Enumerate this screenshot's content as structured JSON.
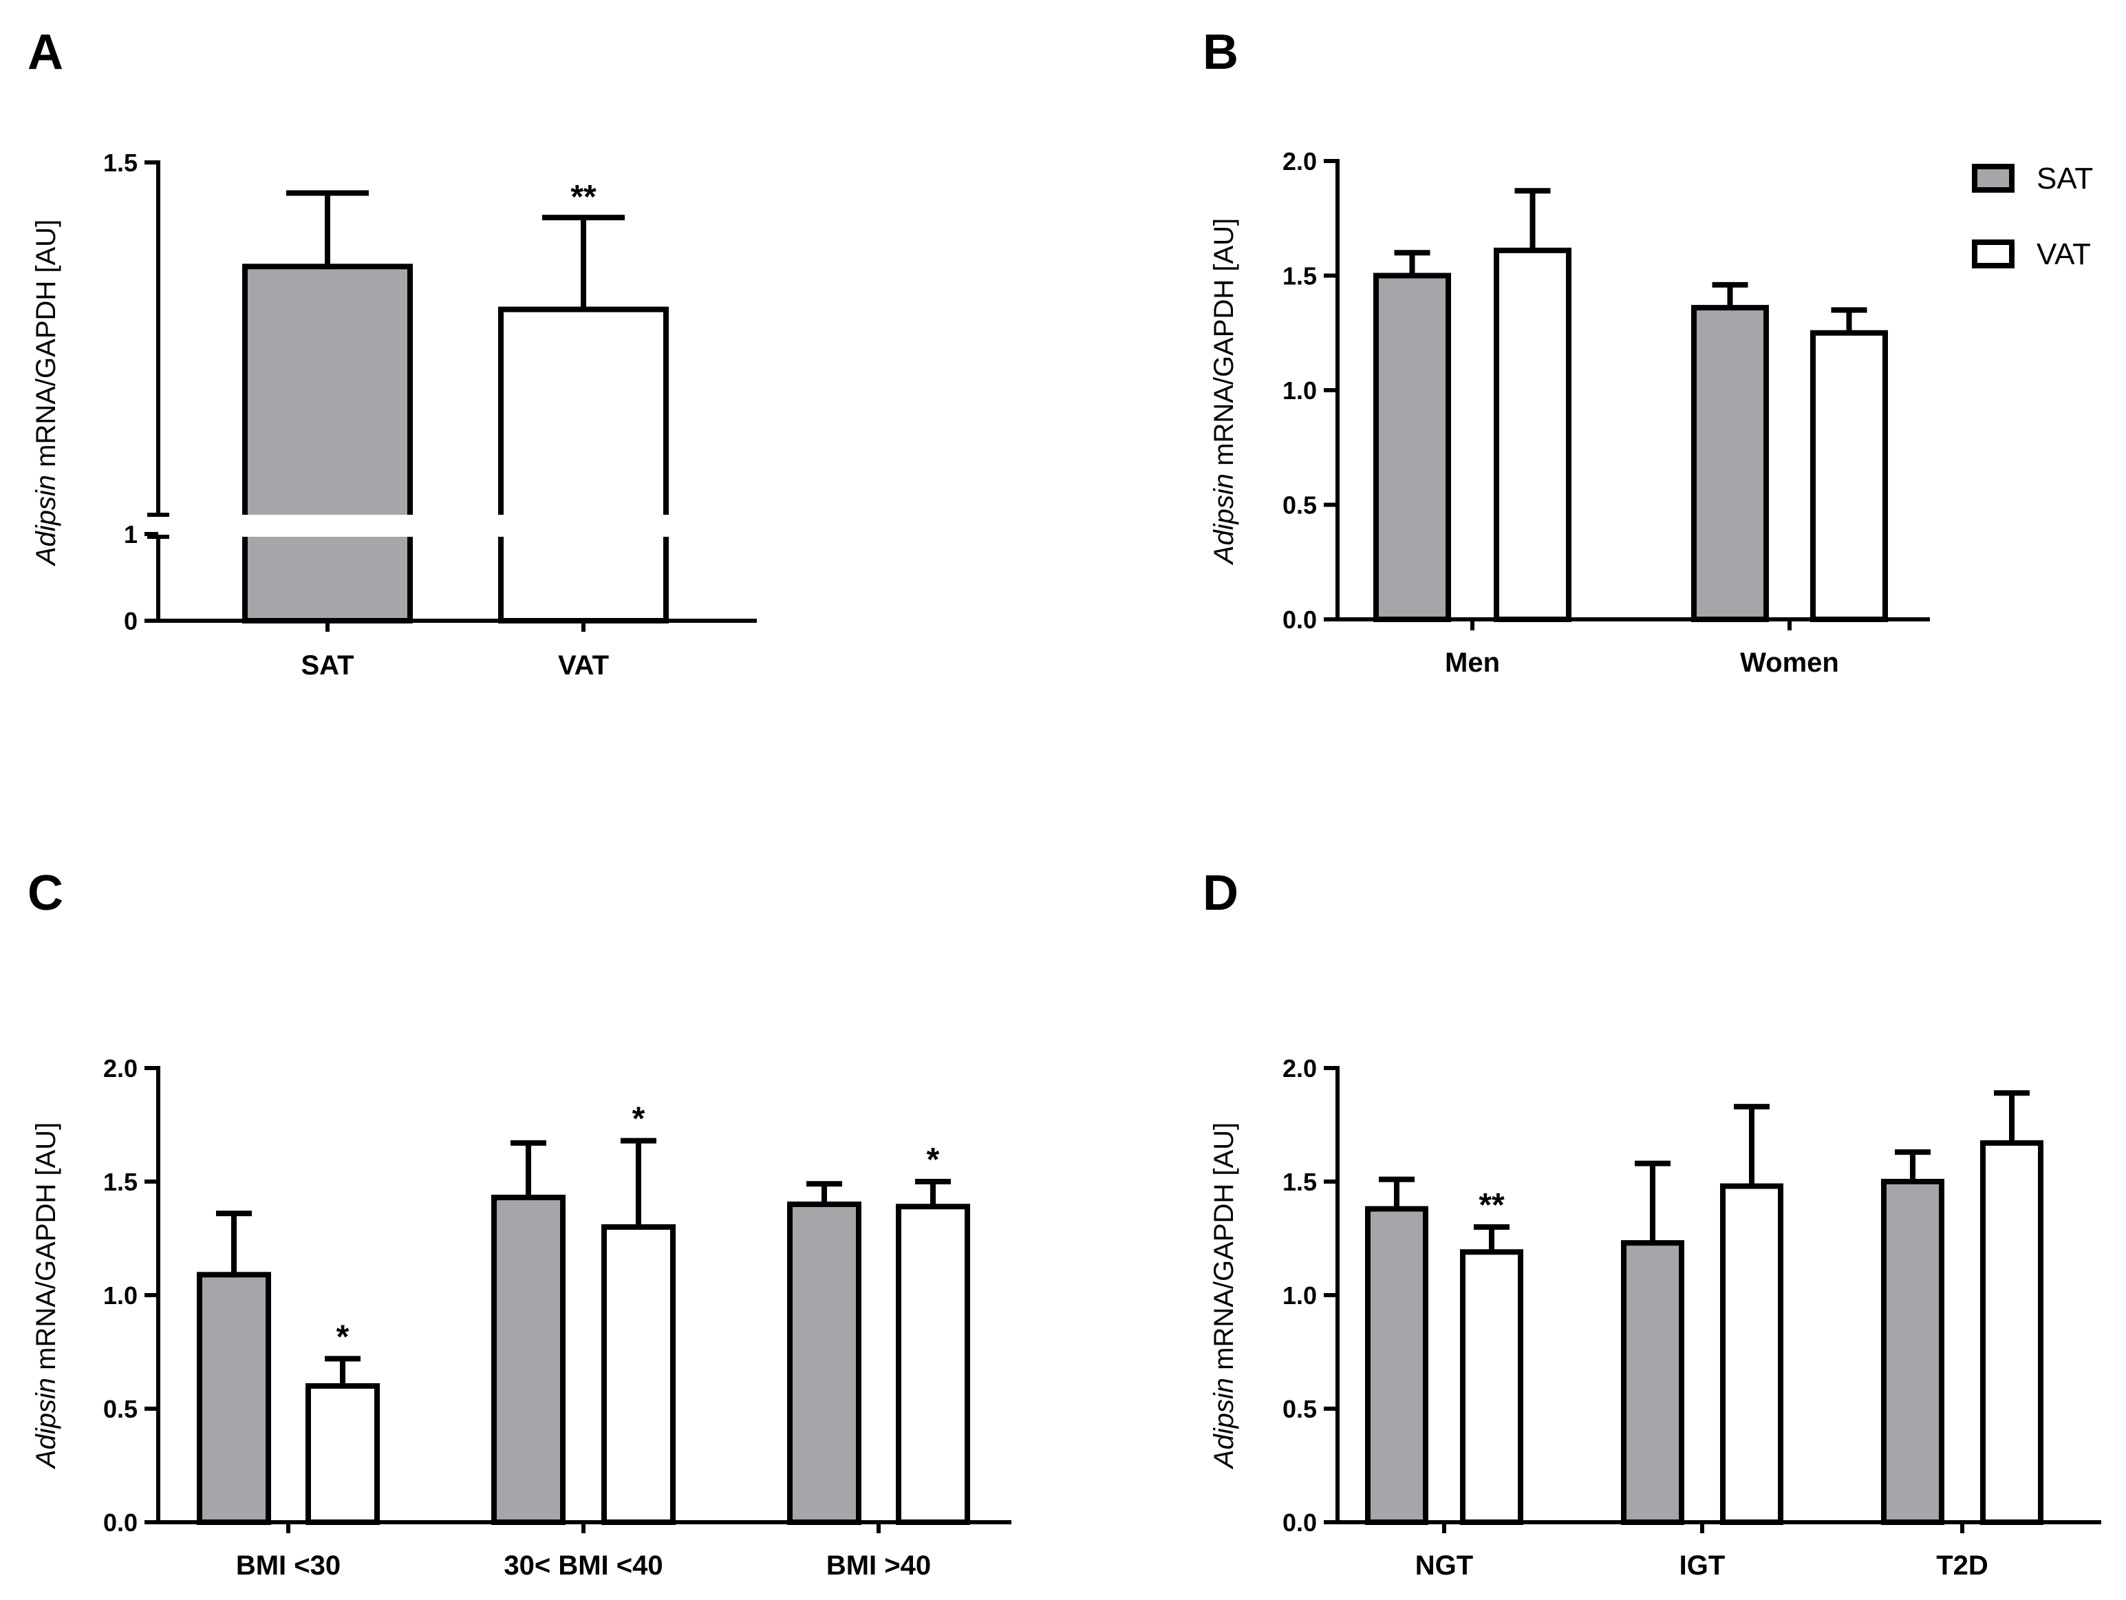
{
  "figure": {
    "colors": {
      "sat_fill": "#a6a5aa",
      "vat_fill": "#ffffff",
      "stroke": "#000000"
    }
  },
  "legend": {
    "entries": [
      "SAT",
      "VAT"
    ]
  },
  "chart_data": [
    {
      "panel": "A",
      "type": "bar",
      "ylabel_italic": "Adipsin",
      "ylabel_rest": " mRNA/GAPDH [AU]",
      "categories": [
        "SAT",
        "VAT"
      ],
      "values": [
        1.33,
        1.26
      ],
      "errors": [
        0.12,
        0.15
      ],
      "significance": [
        "",
        "**"
      ],
      "y_axis_break": true,
      "ylim": [
        0,
        1.5
      ],
      "yticks": [
        "0",
        "1",
        "1.5"
      ]
    },
    {
      "panel": "B",
      "type": "bar",
      "ylabel_italic": "Adipsin",
      "ylabel_rest": " mRNA/GAPDH [AU]",
      "categories": [
        "Men",
        "Women"
      ],
      "series": [
        {
          "name": "SAT",
          "values": [
            1.5,
            1.36
          ],
          "errors": [
            0.1,
            0.1
          ],
          "significance": [
            "",
            ""
          ]
        },
        {
          "name": "VAT",
          "values": [
            1.61,
            1.25
          ],
          "errors": [
            0.26,
            0.1
          ],
          "significance": [
            "",
            ""
          ]
        }
      ],
      "ylim": [
        0,
        2.0
      ],
      "yticks": [
        "0.0",
        "0.5",
        "1.0",
        "1.5",
        "2.0"
      ]
    },
    {
      "panel": "C",
      "type": "bar",
      "ylabel_italic": "Adipsin",
      "ylabel_rest": " mRNA/GAPDH [AU]",
      "categories": [
        "BMI <30",
        "30< BMI <40",
        "BMI >40"
      ],
      "series": [
        {
          "name": "SAT",
          "values": [
            1.09,
            1.43,
            1.4
          ],
          "errors": [
            0.27,
            0.24,
            0.09
          ],
          "significance": [
            "",
            "",
            ""
          ]
        },
        {
          "name": "VAT",
          "values": [
            0.6,
            1.3,
            1.39
          ],
          "errors": [
            0.12,
            0.38,
            0.11
          ],
          "significance": [
            "*",
            "*",
            "*"
          ]
        }
      ],
      "ylim": [
        0,
        2.0
      ],
      "yticks": [
        "0.0",
        "0.5",
        "1.0",
        "1.5",
        "2.0"
      ]
    },
    {
      "panel": "D",
      "type": "bar",
      "ylabel_italic": "Adipsin",
      "ylabel_rest": " mRNA/GAPDH [AU]",
      "categories": [
        "NGT",
        "IGT",
        "T2D"
      ],
      "series": [
        {
          "name": "SAT",
          "values": [
            1.38,
            1.23,
            1.5
          ],
          "errors": [
            0.13,
            0.35,
            0.13
          ],
          "significance": [
            "",
            "",
            ""
          ]
        },
        {
          "name": "VAT",
          "values": [
            1.19,
            1.48,
            1.67
          ],
          "errors": [
            0.11,
            0.35,
            0.22
          ],
          "significance": [
            "**",
            "",
            ""
          ]
        }
      ],
      "ylim": [
        0,
        2.0
      ],
      "yticks": [
        "0.0",
        "0.5",
        "1.0",
        "1.5",
        "2.0"
      ]
    }
  ]
}
